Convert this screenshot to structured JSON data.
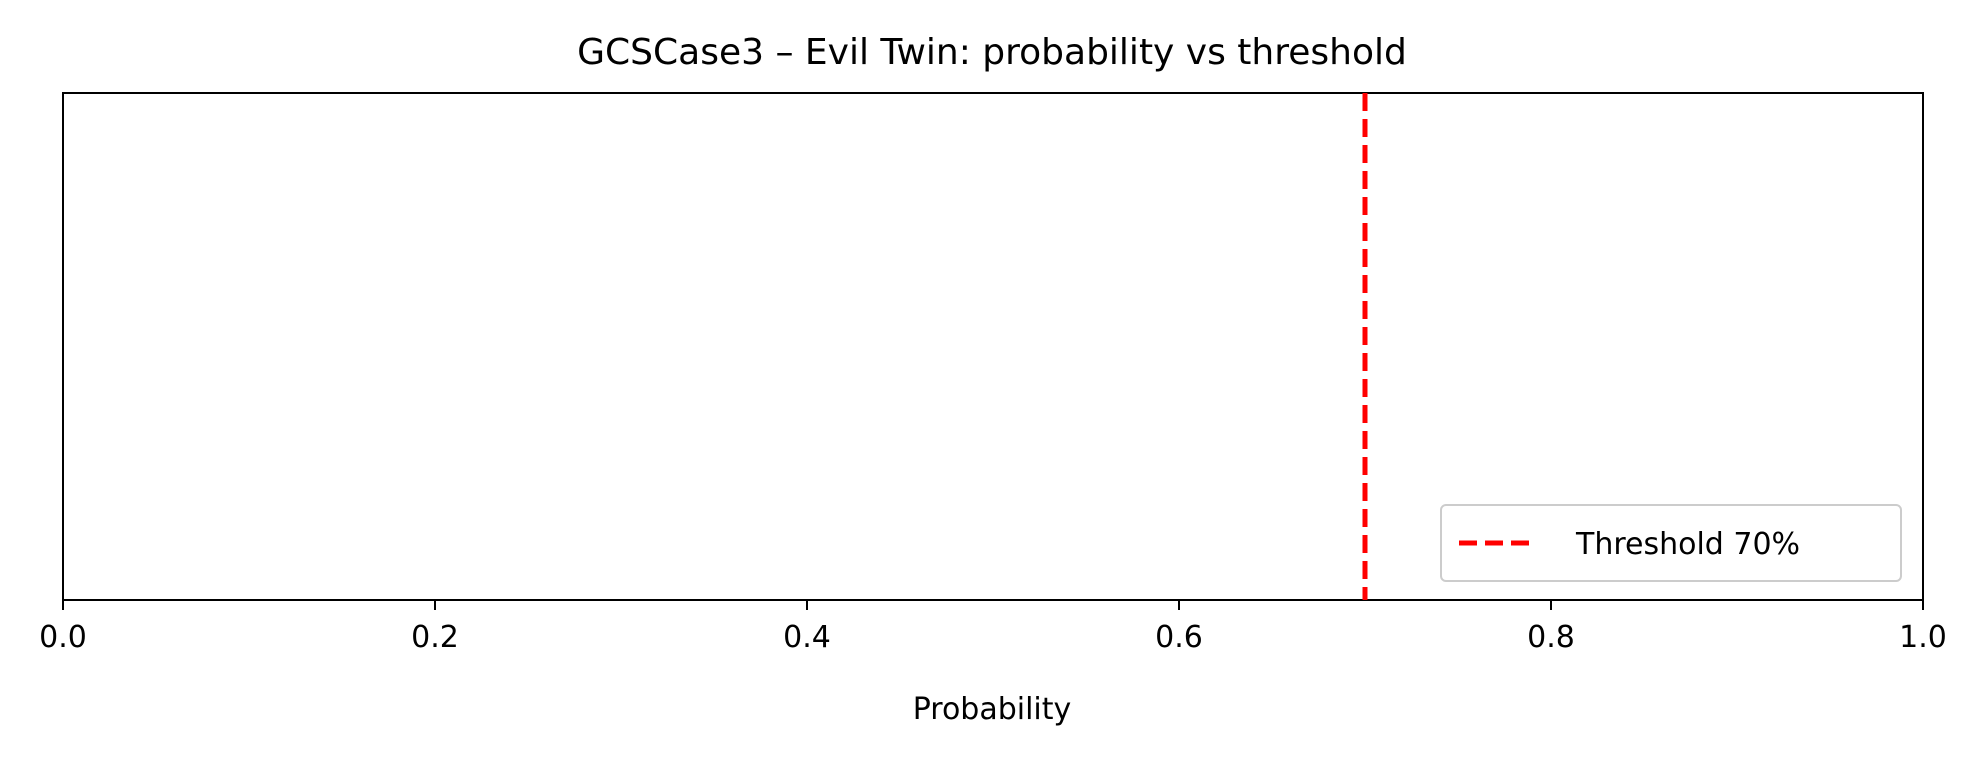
{
  "chart_data": {
    "type": "line",
    "title": "GCSCase3 – Evil Twin: probability vs threshold",
    "xlabel": "Probability",
    "ylabel": "",
    "xlim": [
      0.0,
      1.0
    ],
    "x_ticks": [
      "0.0",
      "0.2",
      "0.4",
      "0.6",
      "0.8",
      "1.0"
    ],
    "y_ticks_visible": false,
    "grid": false,
    "legend_position": "lower right",
    "series": [
      {
        "name": "Threshold 70%",
        "kind": "vertical-line",
        "x": 0.7,
        "style": "dashed",
        "color": "#ff0000"
      }
    ]
  }
}
